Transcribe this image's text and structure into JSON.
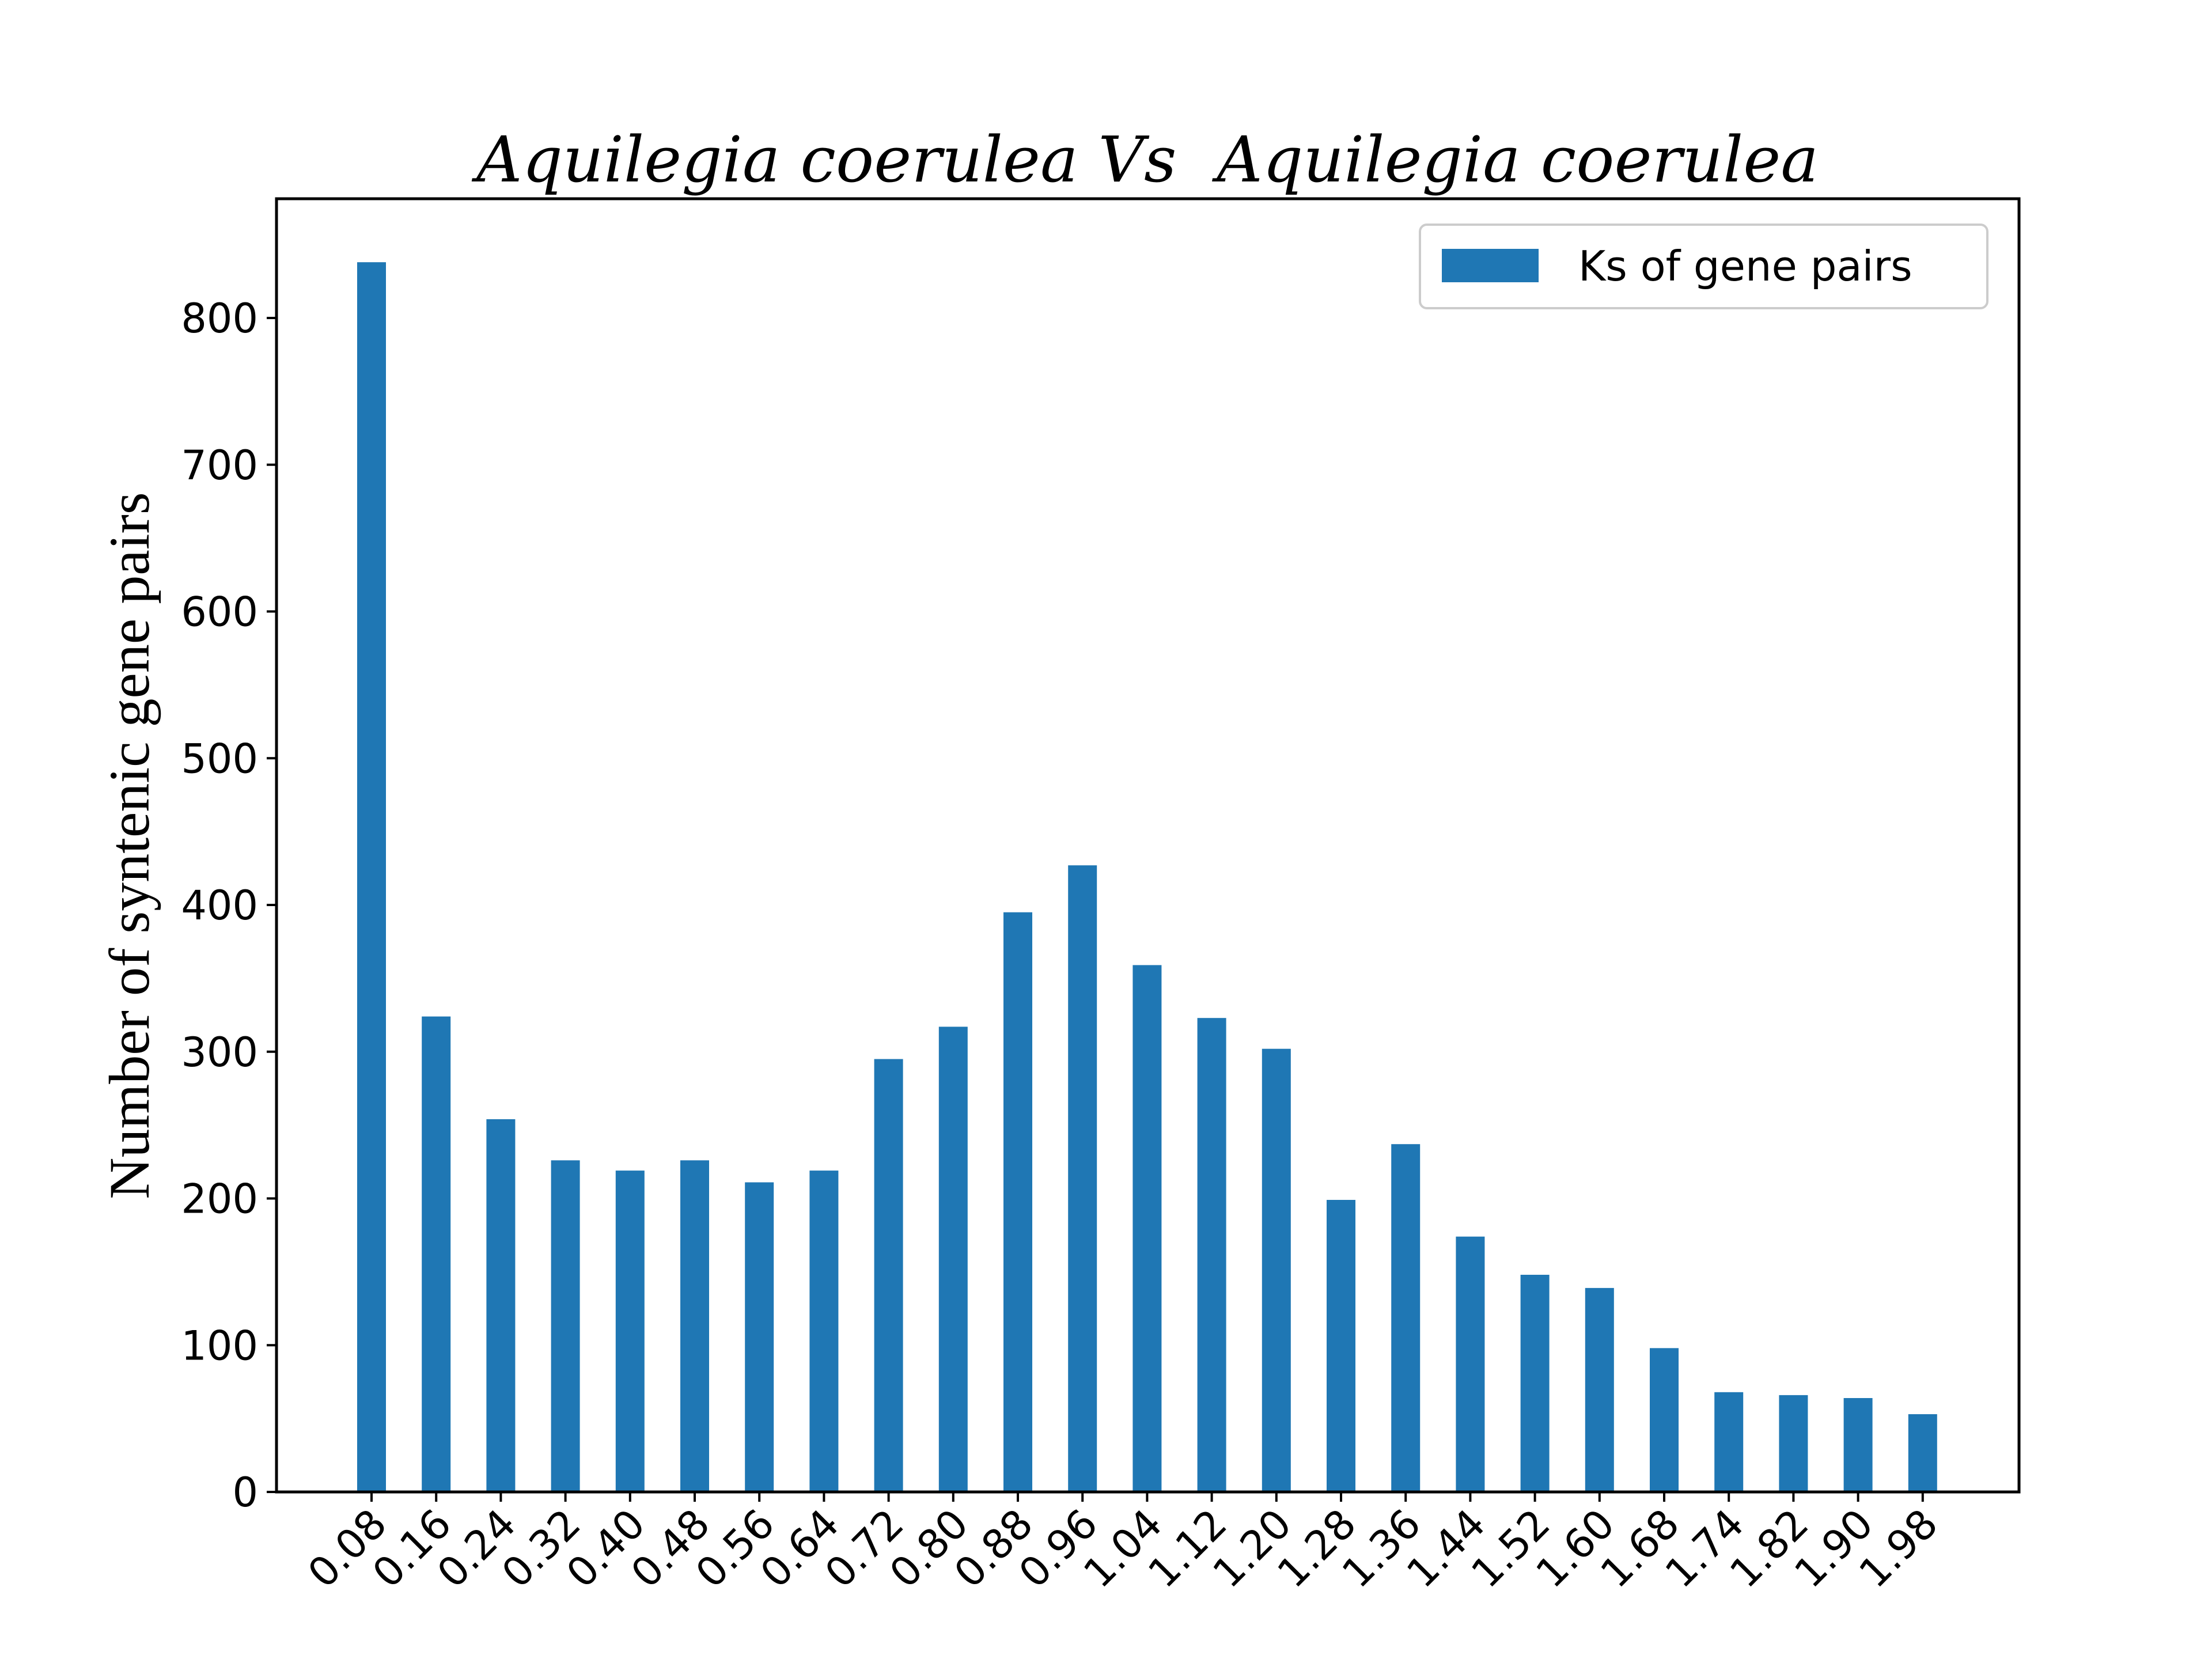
{
  "chart_data": {
    "type": "bar",
    "title": "Aquilegia coerulea Vs  Aquilegia coerulea",
    "xlabel": "",
    "ylabel": "Number of syntenic gene pairs",
    "categories": [
      "0.08",
      "0.16",
      "0.24",
      "0.32",
      "0.40",
      "0.48",
      "0.56",
      "0.64",
      "0.72",
      "0.80",
      "0.88",
      "0.96",
      "1.04",
      "1.12",
      "1.20",
      "1.28",
      "1.36",
      "1.44",
      "1.52",
      "1.60",
      "1.68",
      "1.74",
      "1.82",
      "1.90",
      "1.98"
    ],
    "series": [
      {
        "name": "Ks of gene pairs",
        "color": "#1f77b4",
        "values": [
          838,
          324,
          254,
          226,
          219,
          226,
          211,
          219,
          295,
          317,
          395,
          427,
          359,
          323,
          302,
          199,
          237,
          174,
          148,
          139,
          98,
          68,
          66,
          64,
          53
        ]
      }
    ],
    "yticks": [
      "0",
      "100",
      "200",
      "300",
      "400",
      "500",
      "600",
      "700",
      "800"
    ],
    "ylim": [
      0,
      880
    ],
    "legend_position": "top-right",
    "grid": false
  }
}
